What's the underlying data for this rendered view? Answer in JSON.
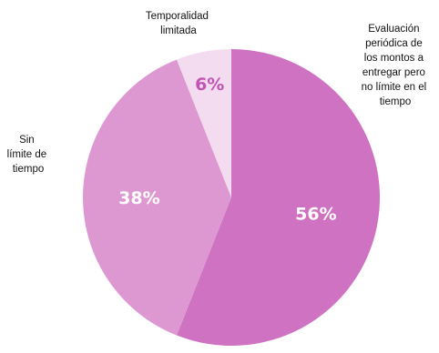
{
  "chart_data": {
    "type": "pie",
    "categories": [
      "Evaluación periódica de los montos a entregar pero no límite en el tiempo",
      "Sin límite de tiempo",
      "Temporalidad limitada"
    ],
    "values": [
      56,
      38,
      6
    ],
    "value_labels": [
      "56%",
      "38%",
      "6%"
    ],
    "label_lines": [
      [
        "Evaluación",
        "periódica de",
        "los montos a",
        "entregar pero",
        "no límite en el",
        "tiempo"
      ],
      [
        "Sin",
        "límite de",
        "tiempo"
      ],
      [
        "Temporalidad",
        "limitada"
      ]
    ],
    "colors": [
      "#cf72c2",
      "#dd98d2",
      "#f3dcef"
    ],
    "value_label_colors": [
      "#ffffff",
      "#ffffff",
      "#c254b4"
    ],
    "start": "12 o'clock",
    "direction": "clockwise",
    "legend": "none"
  }
}
